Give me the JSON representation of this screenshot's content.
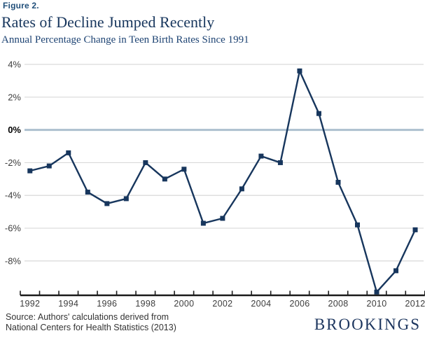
{
  "figure_label": "Figure 2.",
  "title": "Rates of Decline Jumped Recently",
  "subtitle": "Annual Percentage Change in Teen Birth Rates Since 1991",
  "source": {
    "line1": "Source: Authors' calculations derived from",
    "line2": "National Centers for Health Statistics (2013)"
  },
  "logo_text": "BROOKINGS",
  "colors": {
    "line": "#17365d",
    "marker": "#17365d",
    "grid": "#d9d9d9",
    "zero_line": "#adc0cf",
    "axis": "#1a1a1a",
    "tick_text": "#3d3d3d",
    "zero_tick_text": "#000000",
    "title_navy": "#17365d",
    "logo_navy": "#1c355e",
    "source_text": "#333333"
  },
  "chart_data": {
    "type": "line",
    "title": "Rates of Decline Jumped Recently",
    "subtitle": "Annual Percentage Change in Teen Birth Rates Since 1991",
    "series_name": "Annual percentage change in teen birth rate",
    "x": [
      1992,
      1993,
      1994,
      1995,
      1996,
      1997,
      1998,
      1999,
      2000,
      2001,
      2002,
      2003,
      2004,
      2005,
      2006,
      2007,
      2008,
      2009,
      2010,
      2011,
      2012
    ],
    "values": [
      -2.5,
      -2.2,
      -1.4,
      -3.8,
      -4.5,
      -4.2,
      -2.0,
      -3.0,
      -2.4,
      -5.7,
      -5.4,
      -3.6,
      -1.6,
      -2.0,
      3.6,
      1.0,
      -3.2,
      -5.8,
      -9.9,
      -8.6,
      -6.1
    ],
    "y_ticks": [
      4,
      2,
      0,
      -2,
      -4,
      -6,
      -8
    ],
    "y_tick_labels": [
      "4%",
      "2%",
      "0%",
      "-2%",
      "-4%",
      "-6%",
      "-8%"
    ],
    "x_tick_labels": [
      "1992",
      "1994",
      "1996",
      "1998",
      "2000",
      "2002",
      "2004",
      "2006",
      "2008",
      "2010",
      "2012"
    ],
    "xlim": [
      1991.5,
      2012.5
    ],
    "ylim": [
      -10.1,
      4.0
    ],
    "grid": "horizontal",
    "zero_line_emphasized": true,
    "marker": "square",
    "legend": "none"
  }
}
